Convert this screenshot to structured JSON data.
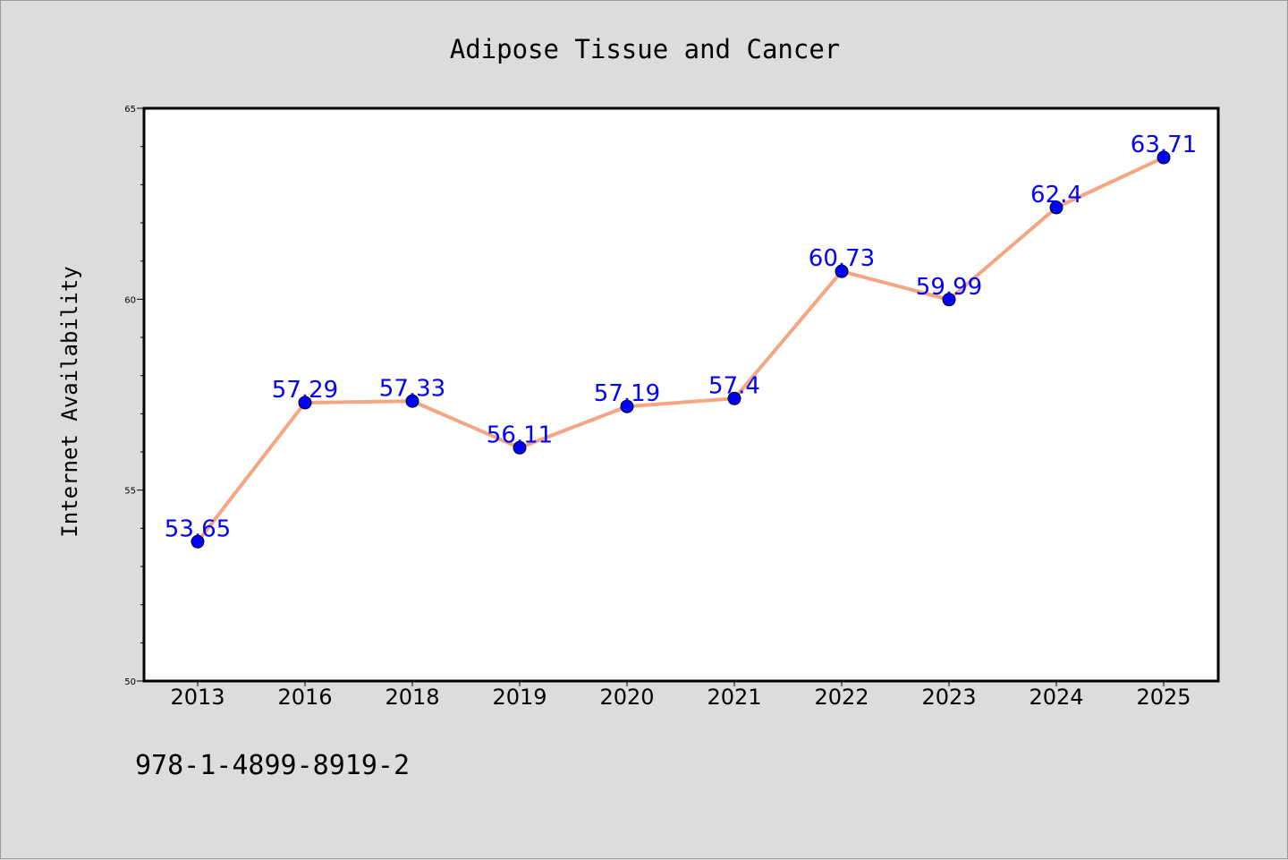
{
  "chart_data": {
    "type": "line",
    "title": "Adipose Tissue and Cancer",
    "xlabel": "",
    "ylabel": "Internet Availability",
    "categories": [
      "2013",
      "2016",
      "2018",
      "2019",
      "2020",
      "2021",
      "2022",
      "2023",
      "2024",
      "2025"
    ],
    "series": [
      {
        "values": [
          53.65,
          57.29,
          57.33,
          56.11,
          57.19,
          57.4,
          60.73,
          59.99,
          62.4,
          63.71
        ],
        "data_labels": [
          "53.65",
          "57.29",
          "57.33",
          "56.11",
          "57.19",
          "57.4",
          "60.73",
          "59.99",
          "62.4",
          "63.71"
        ]
      }
    ],
    "ylim": [
      50,
      65
    ],
    "yticks": [
      50,
      55,
      60,
      65
    ],
    "ytick_labels": [
      "50",
      "55",
      "60",
      "65"
    ],
    "y_minor_step": 1,
    "grid": false,
    "legend": "none",
    "colors": {
      "line": "#f4a582",
      "marker": "#0000ff",
      "data_label": "#0000ff",
      "plot_background": "#ffffff",
      "figure_background": "#dcdcdc"
    }
  },
  "footer_text": "978-1-4899-8919-2"
}
